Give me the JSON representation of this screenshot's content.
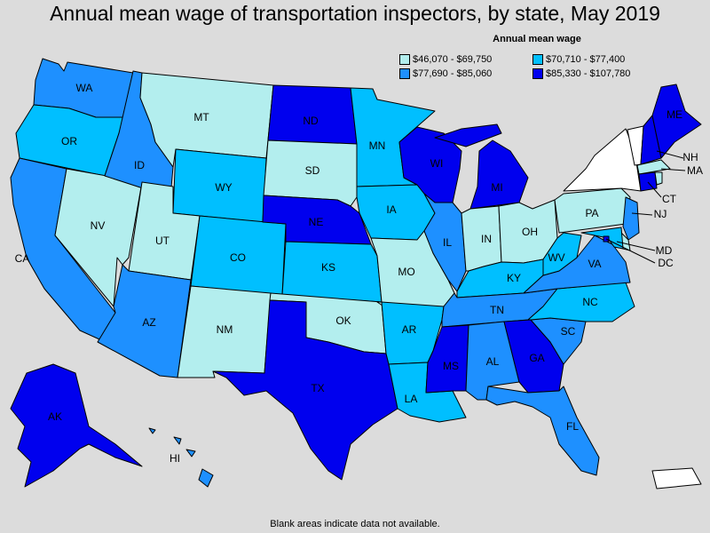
{
  "title": "Annual mean wage of transportation inspectors, by state, May 2019",
  "legend": {
    "title": "Annual mean wage",
    "items": [
      {
        "range": "$46,070 - $69,750",
        "color": "#b3eeee"
      },
      {
        "range": "$70,710 - $77,400",
        "color": "#00bfff"
      },
      {
        "range": "$77,690 - $85,060",
        "color": "#1e90ff"
      },
      {
        "range": "$85,330 - $107,780",
        "color": "#0000ee"
      }
    ]
  },
  "no_data_color": "#ffffff",
  "footnote": "Blank areas indicate data not available.",
  "states": {
    "WA": 2,
    "OR": 1,
    "CA": 2,
    "NV": 0,
    "ID": 2,
    "MT": 0,
    "WY": 1,
    "UT": 0,
    "AZ": 2,
    "CO": 1,
    "NM": 0,
    "ND": 3,
    "SD": 0,
    "NE": 3,
    "KS": 1,
    "OK": 0,
    "TX": 3,
    "MN": 1,
    "IA": 1,
    "MO": 0,
    "AR": 1,
    "LA": 1,
    "WI": 3,
    "IL": 2,
    "MI": 3,
    "IN": 0,
    "OH": 0,
    "KY": 1,
    "TN": 2,
    "MS": 3,
    "AL": 2,
    "GA": 3,
    "FL": 2,
    "SC": 2,
    "NC": 1,
    "VA": 2,
    "WV": 1,
    "PA": 0,
    "NY": -1,
    "VT": -1,
    "NH": 3,
    "ME": 3,
    "MA": 0,
    "CT": 3,
    "RI": 0,
    "NJ": 2,
    "DE": 0,
    "MD": 1,
    "DC": 3,
    "AK": 3,
    "HI": 2,
    "PR": -1
  },
  "labels": {
    "WA": "WA",
    "OR": "OR",
    "CA": "CA",
    "NV": "NV",
    "ID": "ID",
    "MT": "MT",
    "WY": "WY",
    "UT": "UT",
    "AZ": "AZ",
    "CO": "CO",
    "NM": "NM",
    "ND": "ND",
    "SD": "SD",
    "NE": "NE",
    "KS": "KS",
    "OK": "OK",
    "TX": "TX",
    "MN": "MN",
    "IA": "IA",
    "MO": "MO",
    "AR": "AR",
    "LA": "LA",
    "WI": "WI",
    "IL": "IL",
    "MI": "MI",
    "IN": "IN",
    "OH": "OH",
    "KY": "KY",
    "TN": "TN",
    "MS": "MS",
    "AL": "AL",
    "GA": "GA",
    "FL": "FL",
    "SC": "SC",
    "NC": "NC",
    "VA": "VA",
    "WV": "WV",
    "PA": "PA",
    "NH": "NH",
    "ME": "ME",
    "MA": "MA",
    "CT": "CT",
    "NJ": "NJ",
    "MD": "MD",
    "DC": "DC",
    "AK": "AK",
    "HI": "HI"
  }
}
